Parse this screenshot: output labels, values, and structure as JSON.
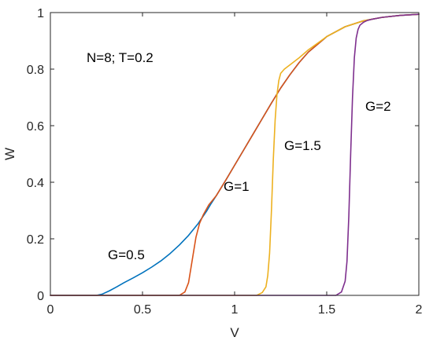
{
  "chart_data": {
    "type": "line",
    "title": "",
    "xlabel": "V",
    "ylabel": "W",
    "xlim": [
      0,
      2
    ],
    "ylim": [
      0,
      1
    ],
    "x_ticks": [
      "0",
      "0.5",
      "1",
      "1.5",
      "2"
    ],
    "y_ticks": [
      "0",
      "0.2",
      "0.4",
      "0.6",
      "0.8",
      "1"
    ],
    "grid": false,
    "legend": "none",
    "annotations": [
      {
        "text": "N=8; T=0.2"
      },
      {
        "text": "G=0.5"
      },
      {
        "text": "G=1"
      },
      {
        "text": "G=1.5"
      },
      {
        "text": "G=2"
      }
    ],
    "series": [
      {
        "color": "#0072BD",
        "x": [
          0,
          0.25,
          0.28,
          0.32,
          0.36,
          0.4,
          0.45,
          0.5,
          0.55,
          0.6,
          0.65,
          0.7,
          0.75,
          0.8,
          0.85,
          0.87,
          0.9,
          0.95,
          1.0,
          1.05,
          1.1,
          1.15,
          1.2,
          1.25,
          1.3,
          1.35,
          1.4,
          1.5,
          1.6,
          1.7,
          1.8,
          1.9,
          2.0
        ],
        "y": [
          0,
          0,
          0.004,
          0.016,
          0.03,
          0.045,
          0.062,
          0.08,
          0.1,
          0.122,
          0.148,
          0.178,
          0.212,
          0.252,
          0.3,
          0.322,
          0.352,
          0.405,
          0.46,
          0.515,
          0.57,
          0.625,
          0.68,
          0.733,
          0.78,
          0.823,
          0.86,
          0.915,
          0.95,
          0.971,
          0.983,
          0.99,
          0.994
        ]
      },
      {
        "color": "#D95319",
        "x": [
          0,
          0.7,
          0.73,
          0.75,
          0.77,
          0.79,
          0.81,
          0.83,
          0.86,
          0.9,
          0.95,
          1.0,
          1.05,
          1.1,
          1.15,
          1.2,
          1.25,
          1.3,
          1.35,
          1.4,
          1.5,
          1.6,
          1.7,
          1.8,
          1.9,
          2.0
        ],
        "y": [
          0,
          0,
          0.012,
          0.045,
          0.125,
          0.205,
          0.255,
          0.285,
          0.32,
          0.352,
          0.405,
          0.46,
          0.515,
          0.57,
          0.625,
          0.68,
          0.733,
          0.78,
          0.823,
          0.86,
          0.915,
          0.95,
          0.971,
          0.983,
          0.99,
          0.994
        ]
      },
      {
        "color": "#EDB120",
        "x": [
          0,
          1.12,
          1.15,
          1.17,
          1.18,
          1.19,
          1.2,
          1.21,
          1.22,
          1.23,
          1.24,
          1.25,
          1.27,
          1.3,
          1.35,
          1.4,
          1.5,
          1.6,
          1.7,
          1.8,
          1.9,
          2.0
        ],
        "y": [
          0,
          0,
          0.01,
          0.03,
          0.07,
          0.15,
          0.3,
          0.48,
          0.62,
          0.71,
          0.76,
          0.785,
          0.8,
          0.815,
          0.84,
          0.868,
          0.915,
          0.95,
          0.971,
          0.983,
          0.99,
          0.994
        ]
      },
      {
        "color": "#7E2F8E",
        "x": [
          0,
          1.55,
          1.58,
          1.6,
          1.61,
          1.62,
          1.63,
          1.64,
          1.65,
          1.66,
          1.67,
          1.68,
          1.7,
          1.72,
          1.75,
          1.8,
          1.9,
          2.0
        ],
        "y": [
          0,
          0,
          0.012,
          0.05,
          0.12,
          0.28,
          0.5,
          0.7,
          0.84,
          0.91,
          0.94,
          0.955,
          0.966,
          0.972,
          0.977,
          0.983,
          0.99,
          0.994
        ]
      }
    ]
  }
}
